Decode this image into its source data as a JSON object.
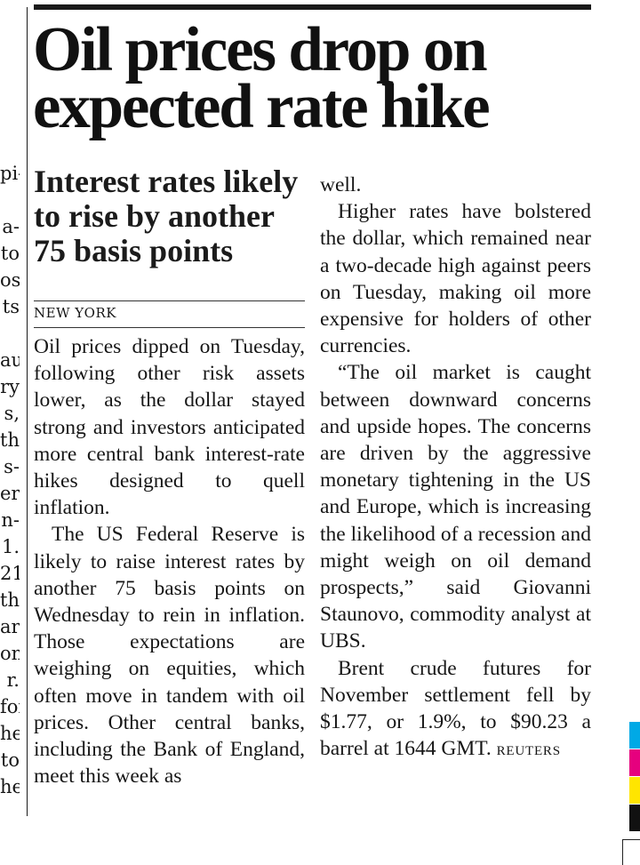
{
  "neighbor_fragments": [
    "",
    "pi-",
    "",
    "a-",
    "to",
    "os)",
    "ts",
    "",
    "au",
    "ry",
    "s,",
    "th",
    "s-",
    "er",
    "n-",
    "1.",
    "21",
    "th",
    "ar",
    "on",
    "r.",
    "for",
    "he",
    "to",
    "he"
  ],
  "article": {
    "headline": "Oil prices drop on expected rate hike",
    "subhead": "Interest rates likely to rise by another 75 basis points",
    "dateline": "NEW YORK",
    "column_a": [
      "Oil prices dipped on Tuesday, following other risk assets lower, as the dollar stayed strong and investors anticipated more central bank interest-rate hikes designed to quell inflation.",
      "The US Federal Reserve is likely to raise interest rates by another 75 basis points on Wednesday to rein in inflation. Those expectations are weighing on equities, which often move in tandem with oil prices. Other central banks, including the Bank of England, meet this week as"
    ],
    "column_b": [
      "well.",
      "Higher rates have bolstered the dollar, which remained near a two-decade high against peers on Tuesday, making oil more expensive for holders of other currencies.",
      "“The oil market is caught between downward concerns and upside hopes. The concerns are driven by the aggressive monetary tightening in the US and Europe, which is increasing the likelihood of a recession and might weigh on oil demand prospects,” said Giovanni Staunovo, commodity analyst at UBS.",
      "Brent crude futures for November settlement fell by $1.77, or 1.9%, to $90.23 a barrel at 1644 GMT."
    ],
    "signoff": "REUTERS"
  },
  "registration_colors": [
    "#00a9e6",
    "#e6007e",
    "#ffe500",
    "#111111"
  ]
}
